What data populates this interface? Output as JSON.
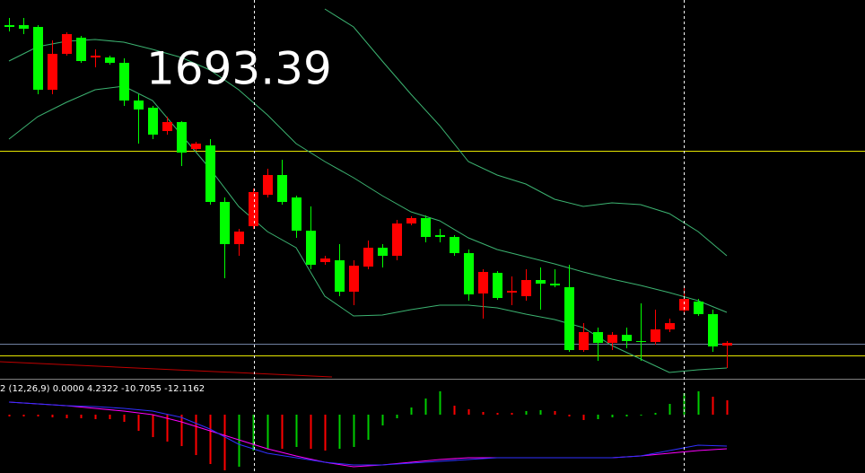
{
  "chart_data": [
    {
      "type": "candlestick",
      "annotation": "1693.39",
      "xlim": [
        -0.625,
        59.625
      ],
      "ylim": [
        0,
        420
      ],
      "up_color": "#ff0000",
      "down_color": "#00ff00",
      "candles": {
        "open": [
          392,
          392,
          390,
          320,
          360,
          378,
          356,
          356,
          350,
          308,
          300,
          274,
          284,
          254,
          258,
          195,
          148,
          168,
          203,
          225,
          200,
          163,
          128,
          130,
          95,
          123,
          144,
          135,
          171,
          177,
          158,
          156,
          138,
          93,
          116,
          94,
          90,
          108,
          104,
          100,
          30,
          50,
          38,
          47,
          40,
          39,
          53,
          74,
          84,
          70,
          35
        ],
        "high": [
          400,
          400,
          392,
          375,
          384,
          380,
          365,
          358,
          355,
          315,
          302,
          290,
          285,
          262,
          265,
          200,
          165,
          210,
          232,
          242,
          202,
          190,
          135,
          148,
          130,
          152,
          148,
          175,
          179,
          180,
          165,
          158,
          142,
          120,
          118,
          112,
          120,
          122,
          120,
          125,
          60,
          55,
          50,
          55,
          82,
          75,
          65,
          100,
          87,
          75,
          40
        ],
        "low": [
          385,
          382,
          315,
          315,
          358,
          350,
          345,
          348,
          302,
          260,
          265,
          270,
          235,
          252,
          192,
          110,
          135,
          165,
          200,
          192,
          155,
          120,
          125,
          90,
          80,
          120,
          122,
          130,
          169,
          150,
          150,
          135,
          85,
          65,
          86,
          80,
          85,
          75,
          100,
          28,
          28,
          18,
          30,
          32,
          18,
          36,
          50,
          72,
          68,
          28,
          10
        ],
        "close": [
          390,
          388,
          320,
          360,
          382,
          352,
          358,
          350,
          308,
          298,
          270,
          284,
          250,
          260,
          195,
          148,
          162,
          206,
          225,
          195,
          163,
          125,
          132,
          95,
          124,
          144,
          135,
          171,
          177,
          156,
          156,
          138,
          92,
          117,
          88,
          96,
          108,
          104,
          102,
          30,
          50,
          38,
          47,
          40,
          39,
          53,
          60,
          87,
          70,
          34,
          38
        ]
      },
      "series": [
        {
          "name": "upper",
          "color": "#3cb371",
          "x": [
            0,
            2,
            4,
            6,
            8,
            10,
            12,
            14,
            16,
            18,
            20,
            22,
            24,
            26,
            28,
            30,
            32,
            34,
            36,
            38,
            40,
            42,
            44,
            46,
            48,
            50
          ],
          "values": [
            null,
            null,
            null,
            null,
            null,
            null,
            null,
            null,
            null,
            null,
            null,
            410,
            390,
            352,
            315,
            280,
            240,
            225,
            215,
            198,
            190,
            194,
            192,
            182,
            162,
            135
          ]
        },
        {
          "name": "middle",
          "color": "#3cb371",
          "x": [
            0,
            2,
            4,
            6,
            8,
            10,
            12,
            14,
            16,
            18,
            20,
            22,
            24,
            26,
            28,
            30,
            32,
            34,
            36,
            38,
            40,
            42,
            44,
            46,
            48,
            50
          ],
          "values": [
            352,
            368,
            374,
            376,
            373,
            365,
            356,
            342,
            320,
            292,
            260,
            240,
            222,
            202,
            184,
            174,
            155,
            142,
            134,
            126,
            117,
            109,
            102,
            94,
            85,
            72
          ]
        },
        {
          "name": "lower",
          "color": "#3cb371",
          "x": [
            0,
            2,
            4,
            6,
            8,
            10,
            12,
            14,
            16,
            18,
            20,
            22,
            24,
            26,
            28,
            30,
            32,
            34,
            36,
            38,
            40,
            42,
            44,
            46,
            48,
            50
          ],
          "values": [
            265,
            290,
            306,
            320,
            324,
            308,
            270,
            232,
            190,
            162,
            144,
            90,
            68,
            69,
            75,
            80,
            80,
            77,
            70,
            64,
            55,
            35,
            20,
            5,
            8,
            10
          ]
        },
        {
          "name": "trend",
          "color": "#c00000",
          "x": [
            -0.625,
            22.5
          ],
          "values": [
            17,
            0
          ]
        }
      ],
      "levels": [
        {
          "value": 252,
          "color": "#e6e600"
        },
        {
          "value": 37,
          "color": "#7080a0"
        },
        {
          "value": 24,
          "color": "#e6e600"
        }
      ],
      "vlines": [
        17.06,
        47
      ]
    },
    {
      "type": "macd",
      "label": "2 (12,26,9) 0.0000 4.2322 -10.7055 -12.1162",
      "xlim": [
        -0.625,
        59.625
      ],
      "ylim": [
        -65,
        35
      ],
      "up_color": "#00cc00",
      "down_color": "#ff0000",
      "values": [
        -2,
        -2,
        -2,
        -3,
        -4,
        -4,
        -5,
        -5,
        -8,
        -18,
        -25,
        -30,
        -35,
        -45,
        -55,
        -62,
        -58,
        -40,
        -38,
        -38,
        -36,
        -38,
        -40,
        -38,
        -36,
        -28,
        -12,
        -4,
        8,
        18,
        26,
        10,
        6,
        3,
        2,
        2,
        4,
        5,
        4,
        -2,
        -6,
        -5,
        -3,
        -2,
        -1,
        2,
        12,
        24,
        26,
        20,
        16
      ],
      "series": [
        {
          "name": "macd",
          "color": "#ff00ff",
          "x": [
            0,
            2,
            4,
            6,
            8,
            10,
            12,
            14,
            16,
            18,
            20,
            22,
            24,
            26,
            28,
            30,
            32,
            34,
            36,
            38,
            40,
            42,
            44,
            46,
            48,
            50
          ],
          "values": [
            14,
            12,
            10,
            7,
            4,
            0,
            -8,
            -18,
            -28,
            -38,
            -46,
            -53,
            -58,
            -56,
            -53,
            -50,
            -48,
            -48,
            -48,
            -48,
            -48,
            -48,
            -46,
            -43,
            -40,
            -38
          ]
        },
        {
          "name": "signal",
          "color": "#3030ff",
          "x": [
            0,
            2,
            4,
            6,
            8,
            10,
            12,
            14,
            16,
            18,
            20,
            22,
            24,
            26,
            28,
            30,
            32,
            34,
            36,
            38,
            40,
            42,
            44,
            46,
            48,
            50
          ],
          "values": [
            14,
            12,
            10,
            9,
            7,
            4,
            -3,
            -16,
            -33,
            -43,
            -48,
            -53,
            -56,
            -56,
            -54,
            -52,
            -50,
            -48,
            -48,
            -48,
            -48,
            -48,
            -46,
            -40,
            -34,
            -35
          ]
        }
      ]
    }
  ]
}
